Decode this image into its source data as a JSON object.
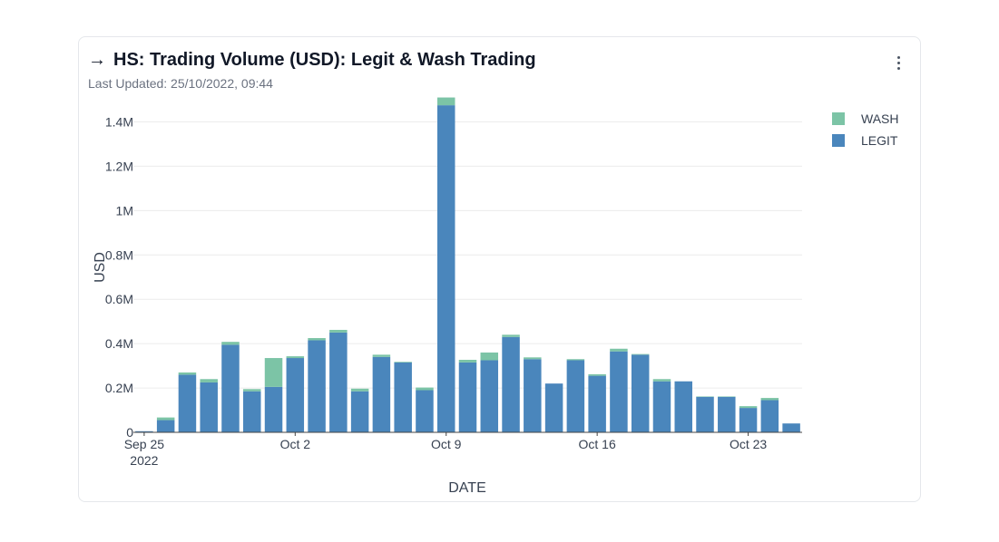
{
  "header": {
    "title": "HS: Trading Volume (USD): Legit & Wash Trading",
    "last_updated": "Last Updated: 25/10/2022, 09:44",
    "arrow_icon": "arrow-right-icon",
    "menu_icon": "more-vertical-icon"
  },
  "chart_data": {
    "type": "bar",
    "stacked": true,
    "xlabel": "DATE",
    "ylabel": "USD",
    "ylim": [
      0,
      1.5
    ],
    "y_unit": "M",
    "y_ticks": [
      {
        "value": 0,
        "label": "0"
      },
      {
        "value": 0.2,
        "label": "0.2M"
      },
      {
        "value": 0.4,
        "label": "0.4M"
      },
      {
        "value": 0.6,
        "label": "0.6M"
      },
      {
        "value": 0.8,
        "label": "0.8M"
      },
      {
        "value": 1.0,
        "label": "1M"
      },
      {
        "value": 1.2,
        "label": "1.2M"
      },
      {
        "value": 1.4,
        "label": "1.4M"
      }
    ],
    "x_ticks": [
      {
        "index": 0,
        "label": "Sep 25",
        "sublabel": "2022"
      },
      {
        "index": 7,
        "label": "Oct 2",
        "sublabel": ""
      },
      {
        "index": 14,
        "label": "Oct 9",
        "sublabel": ""
      },
      {
        "index": 21,
        "label": "Oct 16",
        "sublabel": ""
      },
      {
        "index": 28,
        "label": "Oct 23",
        "sublabel": ""
      }
    ],
    "categories": [
      "2022-09-25",
      "2022-09-26",
      "2022-09-27",
      "2022-09-28",
      "2022-09-29",
      "2022-09-30",
      "2022-10-01",
      "2022-10-02",
      "2022-10-03",
      "2022-10-04",
      "2022-10-05",
      "2022-10-06",
      "2022-10-07",
      "2022-10-08",
      "2022-10-09",
      "2022-10-10",
      "2022-10-11",
      "2022-10-12",
      "2022-10-13",
      "2022-10-14",
      "2022-10-15",
      "2022-10-16",
      "2022-10-17",
      "2022-10-18",
      "2022-10-19",
      "2022-10-20",
      "2022-10-21",
      "2022-10-22",
      "2022-10-23",
      "2022-10-24",
      "2022-10-25"
    ],
    "series": [
      {
        "name": "LEGIT",
        "color": "#4a86bc",
        "values": [
          0.005,
          0.055,
          0.26,
          0.225,
          0.395,
          0.185,
          0.205,
          0.335,
          0.415,
          0.45,
          0.185,
          0.34,
          0.315,
          0.19,
          1.475,
          0.315,
          0.325,
          0.43,
          0.33,
          0.22,
          0.325,
          0.255,
          0.365,
          0.35,
          0.23,
          0.23,
          0.16,
          0.16,
          0.11,
          0.145,
          0.04
        ]
      },
      {
        "name": "WASH",
        "color": "#7cc4a6",
        "values": [
          0,
          0.012,
          0.01,
          0.015,
          0.013,
          0.01,
          0.13,
          0.008,
          0.01,
          0.012,
          0.012,
          0.01,
          0.003,
          0.012,
          0.035,
          0.012,
          0.035,
          0.01,
          0.008,
          0,
          0.005,
          0.007,
          0.012,
          0.003,
          0.01,
          0,
          0.002,
          0.002,
          0.008,
          0.01,
          0
        ]
      }
    ],
    "legend_position": "top-right",
    "legend": [
      {
        "name": "WASH",
        "color": "#7cc4a6"
      },
      {
        "name": "LEGIT",
        "color": "#4a86bc"
      }
    ],
    "grid": true
  }
}
